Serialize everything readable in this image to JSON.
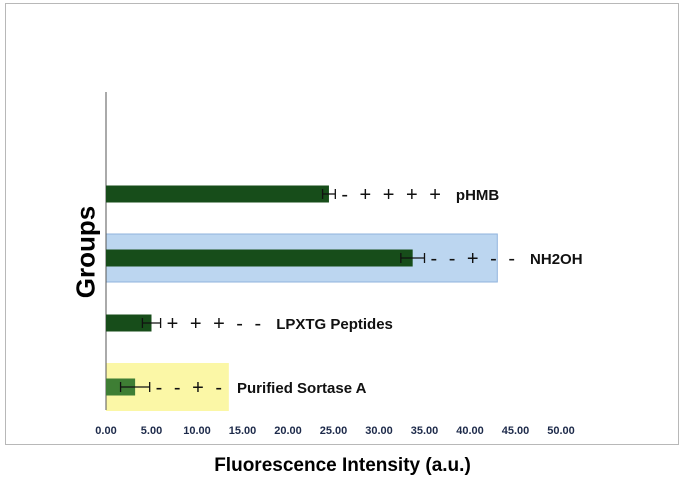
{
  "chart_data": {
    "type": "bar",
    "orientation": "horizontal",
    "title": "",
    "xlabel": "Fluorescence  Intensity (a.u.)",
    "ylabel": "Groups",
    "xlim": [
      0,
      50
    ],
    "xticks": [
      "0.00",
      "5.00",
      "10.00",
      "15.00",
      "20.00",
      "25.00",
      "30.00",
      "35.00",
      "40.00",
      "45.00",
      "50.00"
    ],
    "grid": false,
    "categories": [
      "pHMB",
      "NH2OH",
      "LPXTG Peptides",
      "Purified Sortase A"
    ],
    "values": [
      24.5,
      33.7,
      5.0,
      3.2
    ],
    "errors": [
      0.7,
      1.3,
      1.0,
      1.6
    ],
    "annotations": [
      "- + + + +",
      "- - + - -",
      "+ + + - -",
      "- - + -"
    ],
    "highlights": [
      {
        "category": "NH2OH",
        "color": "#bcd6f0",
        "x_end": 43.0
      },
      {
        "category": "Purified Sortase A",
        "color": "#fbf7a6",
        "x_end": 13.5
      }
    ],
    "colors": {
      "bar": "#174d1a",
      "bar_light": "#3e7e34",
      "tick_text": "#1d2a4a"
    }
  }
}
